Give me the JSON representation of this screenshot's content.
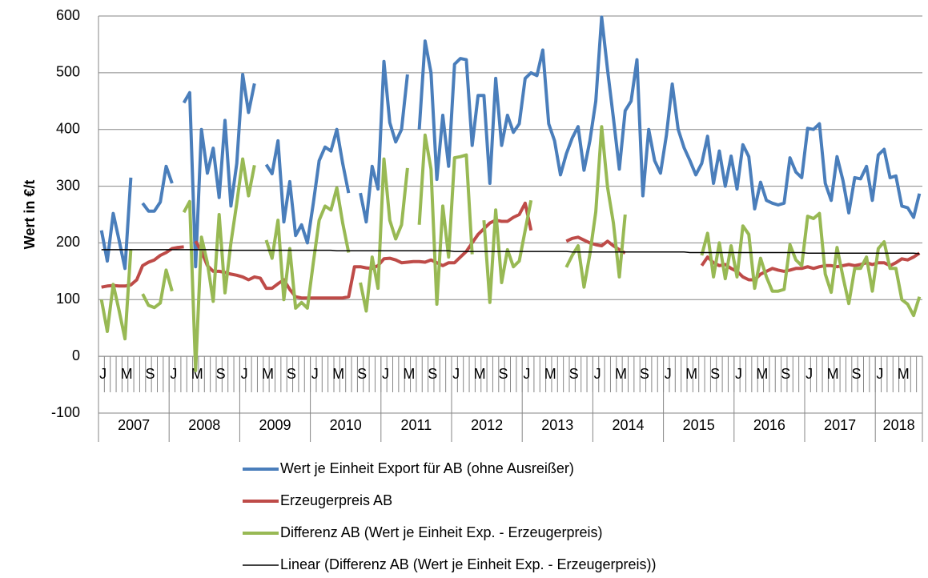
{
  "chart_data": {
    "type": "line",
    "y_label": "Wert in €/t",
    "ylim": [
      -100,
      600
    ],
    "yticks": [
      -100,
      0,
      100,
      200,
      300,
      400,
      500,
      600
    ],
    "grid": true,
    "categories": [
      "J",
      null,
      null,
      null,
      "M",
      null,
      null,
      null,
      "S",
      null,
      null,
      null,
      "J",
      null,
      null,
      null,
      "M",
      null,
      null,
      null,
      "S",
      null,
      null,
      null,
      "J",
      null,
      null,
      null,
      "M",
      null,
      null,
      null,
      "S",
      null,
      null,
      null,
      "J",
      null,
      null,
      null,
      "M",
      null,
      null,
      null,
      "S",
      null,
      null,
      null,
      "J",
      null,
      null,
      null,
      "M",
      null,
      null,
      null,
      "S",
      null,
      null,
      null,
      "J",
      null,
      null,
      null,
      "M",
      null,
      null,
      null,
      "S",
      null,
      null,
      null,
      "J",
      null,
      null,
      null,
      "M",
      null,
      null,
      null,
      "S",
      null,
      null,
      null,
      "J",
      null,
      null,
      null,
      "M",
      null,
      null,
      null,
      "S",
      null,
      null,
      null,
      "J",
      null,
      null,
      null,
      "M",
      null,
      null,
      null,
      "S",
      null,
      null,
      null,
      "J",
      null,
      null,
      null,
      "M",
      null,
      null,
      null,
      "S",
      null,
      null,
      null,
      "J",
      null,
      null,
      null,
      "M",
      null,
      null,
      null,
      "S",
      null,
      null,
      null,
      "J",
      null,
      null,
      null,
      "M",
      null,
      null,
      null
    ],
    "years": [
      "2007",
      "2008",
      "2009",
      "2010",
      "2011",
      "2012",
      "2013",
      "2014",
      "2015",
      "2016",
      "2017",
      "2018"
    ],
    "series": [
      {
        "name": "Wert je Einheit Export für AB (ohne Ausreißer)",
        "color": "#4a7ebb",
        "width": 4,
        "values": [
          222,
          168,
          252,
          205,
          155,
          315,
          null,
          270,
          256,
          256,
          272,
          335,
          305,
          null,
          447,
          465,
          158,
          400,
          323,
          367,
          280,
          416,
          265,
          340,
          497,
          430,
          481,
          null,
          338,
          322,
          380,
          237,
          308,
          213,
          232,
          200,
          270,
          345,
          369,
          362,
          400,
          340,
          288,
          null,
          288,
          237,
          335,
          295,
          520,
          412,
          378,
          400,
          497,
          null,
          400,
          556,
          500,
          312,
          425,
          335,
          515,
          525,
          523,
          372,
          460,
          460,
          305,
          490,
          372,
          425,
          395,
          410,
          490,
          500,
          495,
          540,
          410,
          380,
          320,
          357,
          385,
          405,
          328,
          380,
          450,
          598,
          505,
          420,
          330,
          433,
          450,
          523,
          283,
          400,
          345,
          323,
          390,
          480,
          400,
          368,
          345,
          320,
          340,
          388,
          305,
          362,
          300,
          353,
          295,
          373,
          352,
          260,
          307,
          275,
          270,
          267,
          270,
          350,
          325,
          315,
          402,
          400,
          410,
          305,
          275,
          352,
          310,
          253,
          315,
          313,
          335,
          275,
          355,
          365,
          315,
          318,
          265,
          262,
          245,
          287
        ]
      },
      {
        "name": "Erzeugerpreis AB",
        "color": "#be4b48",
        "width": 4,
        "values": [
          122,
          124,
          125,
          124,
          124,
          126,
          135,
          160,
          166,
          170,
          178,
          183,
          190,
          192,
          193,
          null,
          203,
          185,
          160,
          150,
          150,
          148,
          145,
          143,
          140,
          135,
          140,
          138,
          120,
          120,
          128,
          135,
          118,
          105,
          103,
          103,
          103,
          103,
          103,
          103,
          103,
          103,
          105,
          158,
          158,
          156,
          155,
          160,
          172,
          173,
          170,
          165,
          166,
          167,
          167,
          166,
          170,
          165,
          160,
          165,
          165,
          175,
          185,
          200,
          215,
          225,
          235,
          240,
          238,
          238,
          245,
          250,
          270,
          222,
          null,
          null,
          null,
          null,
          null,
          203,
          208,
          210,
          205,
          200,
          197,
          195,
          203,
          195,
          188,
          182,
          null,
          null,
          null,
          null,
          null,
          null,
          null,
          null,
          null,
          null,
          null,
          null,
          160,
          175,
          165,
          160,
          162,
          155,
          150,
          140,
          135,
          135,
          145,
          150,
          155,
          152,
          150,
          152,
          155,
          155,
          158,
          155,
          158,
          160,
          160,
          158,
          160,
          162,
          160,
          162,
          165,
          162,
          165,
          165,
          160,
          165,
          172,
          170,
          175,
          182
        ]
      },
      {
        "name": "Differenz AB (Wert je Einheit Exp. - Erzeugerpreis)",
        "color": "#98b954",
        "width": 4,
        "values": [
          100,
          44,
          127,
          81,
          31,
          189,
          null,
          110,
          90,
          86,
          94,
          152,
          115,
          null,
          254,
          273,
          -25,
          210,
          165,
          97,
          250,
          112,
          200,
          270,
          348,
          283,
          337,
          null,
          205,
          173,
          240,
          100,
          190,
          85,
          95,
          85,
          165,
          240,
          265,
          258,
          297,
          235,
          183,
          null,
          130,
          80,
          175,
          120,
          348,
          240,
          207,
          232,
          332,
          null,
          232,
          390,
          330,
          92,
          265,
          175,
          350,
          352,
          355,
          180,
          null,
          240,
          95,
          258,
          130,
          188,
          158,
          168,
          222,
          275,
          null,
          null,
          null,
          null,
          null,
          157,
          178,
          195,
          122,
          180,
          255,
          405,
          298,
          235,
          140,
          250,
          null,
          null,
          null,
          null,
          null,
          null,
          null,
          null,
          null,
          null,
          null,
          null,
          178,
          217,
          140,
          200,
          137,
          195,
          140,
          230,
          215,
          120,
          173,
          140,
          115,
          115,
          118,
          197,
          170,
          160,
          247,
          243,
          252,
          145,
          113,
          192,
          140,
          93,
          155,
          155,
          175,
          115,
          190,
          202,
          155,
          155,
          100,
          92,
          72,
          105
        ]
      },
      {
        "name": "Linear (Differenz AB (Wert je Einheit Exp. - Erzeugerpreis))",
        "color": "#000000",
        "width": 1.5,
        "values": [
          188,
          188,
          188,
          188,
          188,
          188,
          188,
          188,
          188,
          188,
          188,
          188,
          188,
          188,
          188,
          188,
          188,
          188,
          188,
          188,
          187,
          187,
          187,
          187,
          187,
          187,
          187,
          187,
          187,
          187,
          187,
          187,
          187,
          187,
          187,
          187,
          187,
          187,
          187,
          187,
          186,
          186,
          186,
          186,
          186,
          186,
          186,
          186,
          186,
          186,
          186,
          186,
          186,
          186,
          186,
          186,
          186,
          186,
          186,
          186,
          185,
          185,
          185,
          185,
          185,
          185,
          185,
          185,
          185,
          185,
          185,
          185,
          185,
          185,
          185,
          185,
          185,
          185,
          185,
          185,
          184,
          184,
          184,
          184,
          184,
          184,
          184,
          184,
          184,
          184,
          184,
          184,
          184,
          184,
          184,
          184,
          184,
          184,
          184,
          184,
          183,
          183,
          183,
          183,
          183,
          183,
          183,
          183,
          183,
          183,
          183,
          183,
          183,
          183,
          183,
          183,
          183,
          183,
          183,
          183,
          182,
          182,
          182,
          182,
          182,
          182,
          182,
          182,
          182,
          182,
          182,
          182,
          182,
          182,
          182,
          182,
          182,
          182,
          182,
          181
        ]
      }
    ]
  }
}
